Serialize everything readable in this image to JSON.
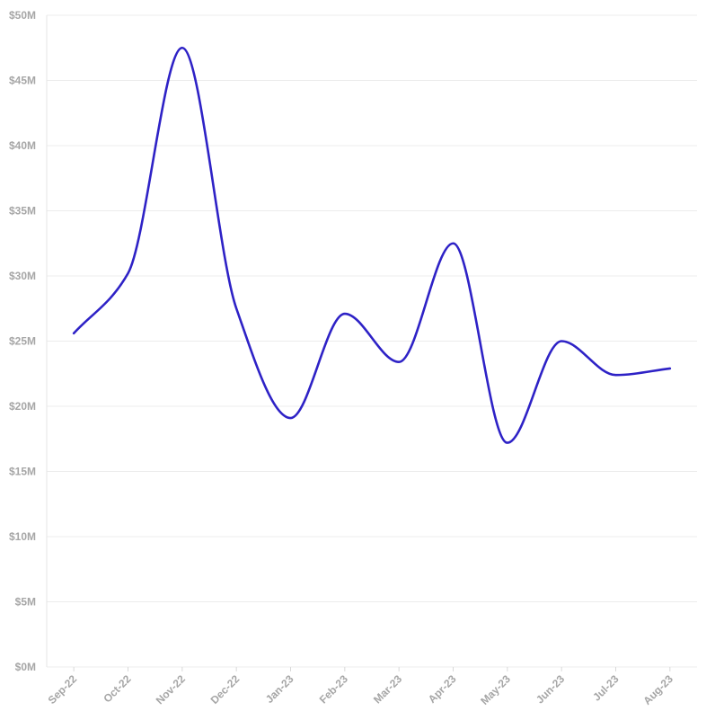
{
  "chart_data": {
    "type": "line",
    "title": "",
    "xlabel": "",
    "ylabel": "",
    "categories": [
      "Sep-22",
      "Oct-22",
      "Nov-22",
      "Dec-22",
      "Jan-23",
      "Feb-23",
      "Mar-23",
      "Apr-23",
      "May-23",
      "Jun-23",
      "Jul-23",
      "Aug-23"
    ],
    "series": [
      {
        "values": [
          25.6,
          30.2,
          47.5,
          27.5,
          19.1,
          27.1,
          23.4,
          32.5,
          17.2,
          25.0,
          22.4,
          22.9
        ]
      }
    ],
    "ylim": [
      0,
      50
    ],
    "yticks": [
      0,
      5,
      10,
      15,
      20,
      25,
      30,
      35,
      40,
      45,
      50
    ],
    "ytick_labels": [
      "$0M",
      "$5M",
      "$10M",
      "$15M",
      "$20M",
      "$25M",
      "$30M",
      "$35M",
      "$40M",
      "$45M",
      "$50M"
    ],
    "grid": true,
    "legend": "none",
    "colors": {
      "line": "#2e22c6",
      "grid": "#ececec",
      "tick_text": "#a6a6a6"
    }
  }
}
